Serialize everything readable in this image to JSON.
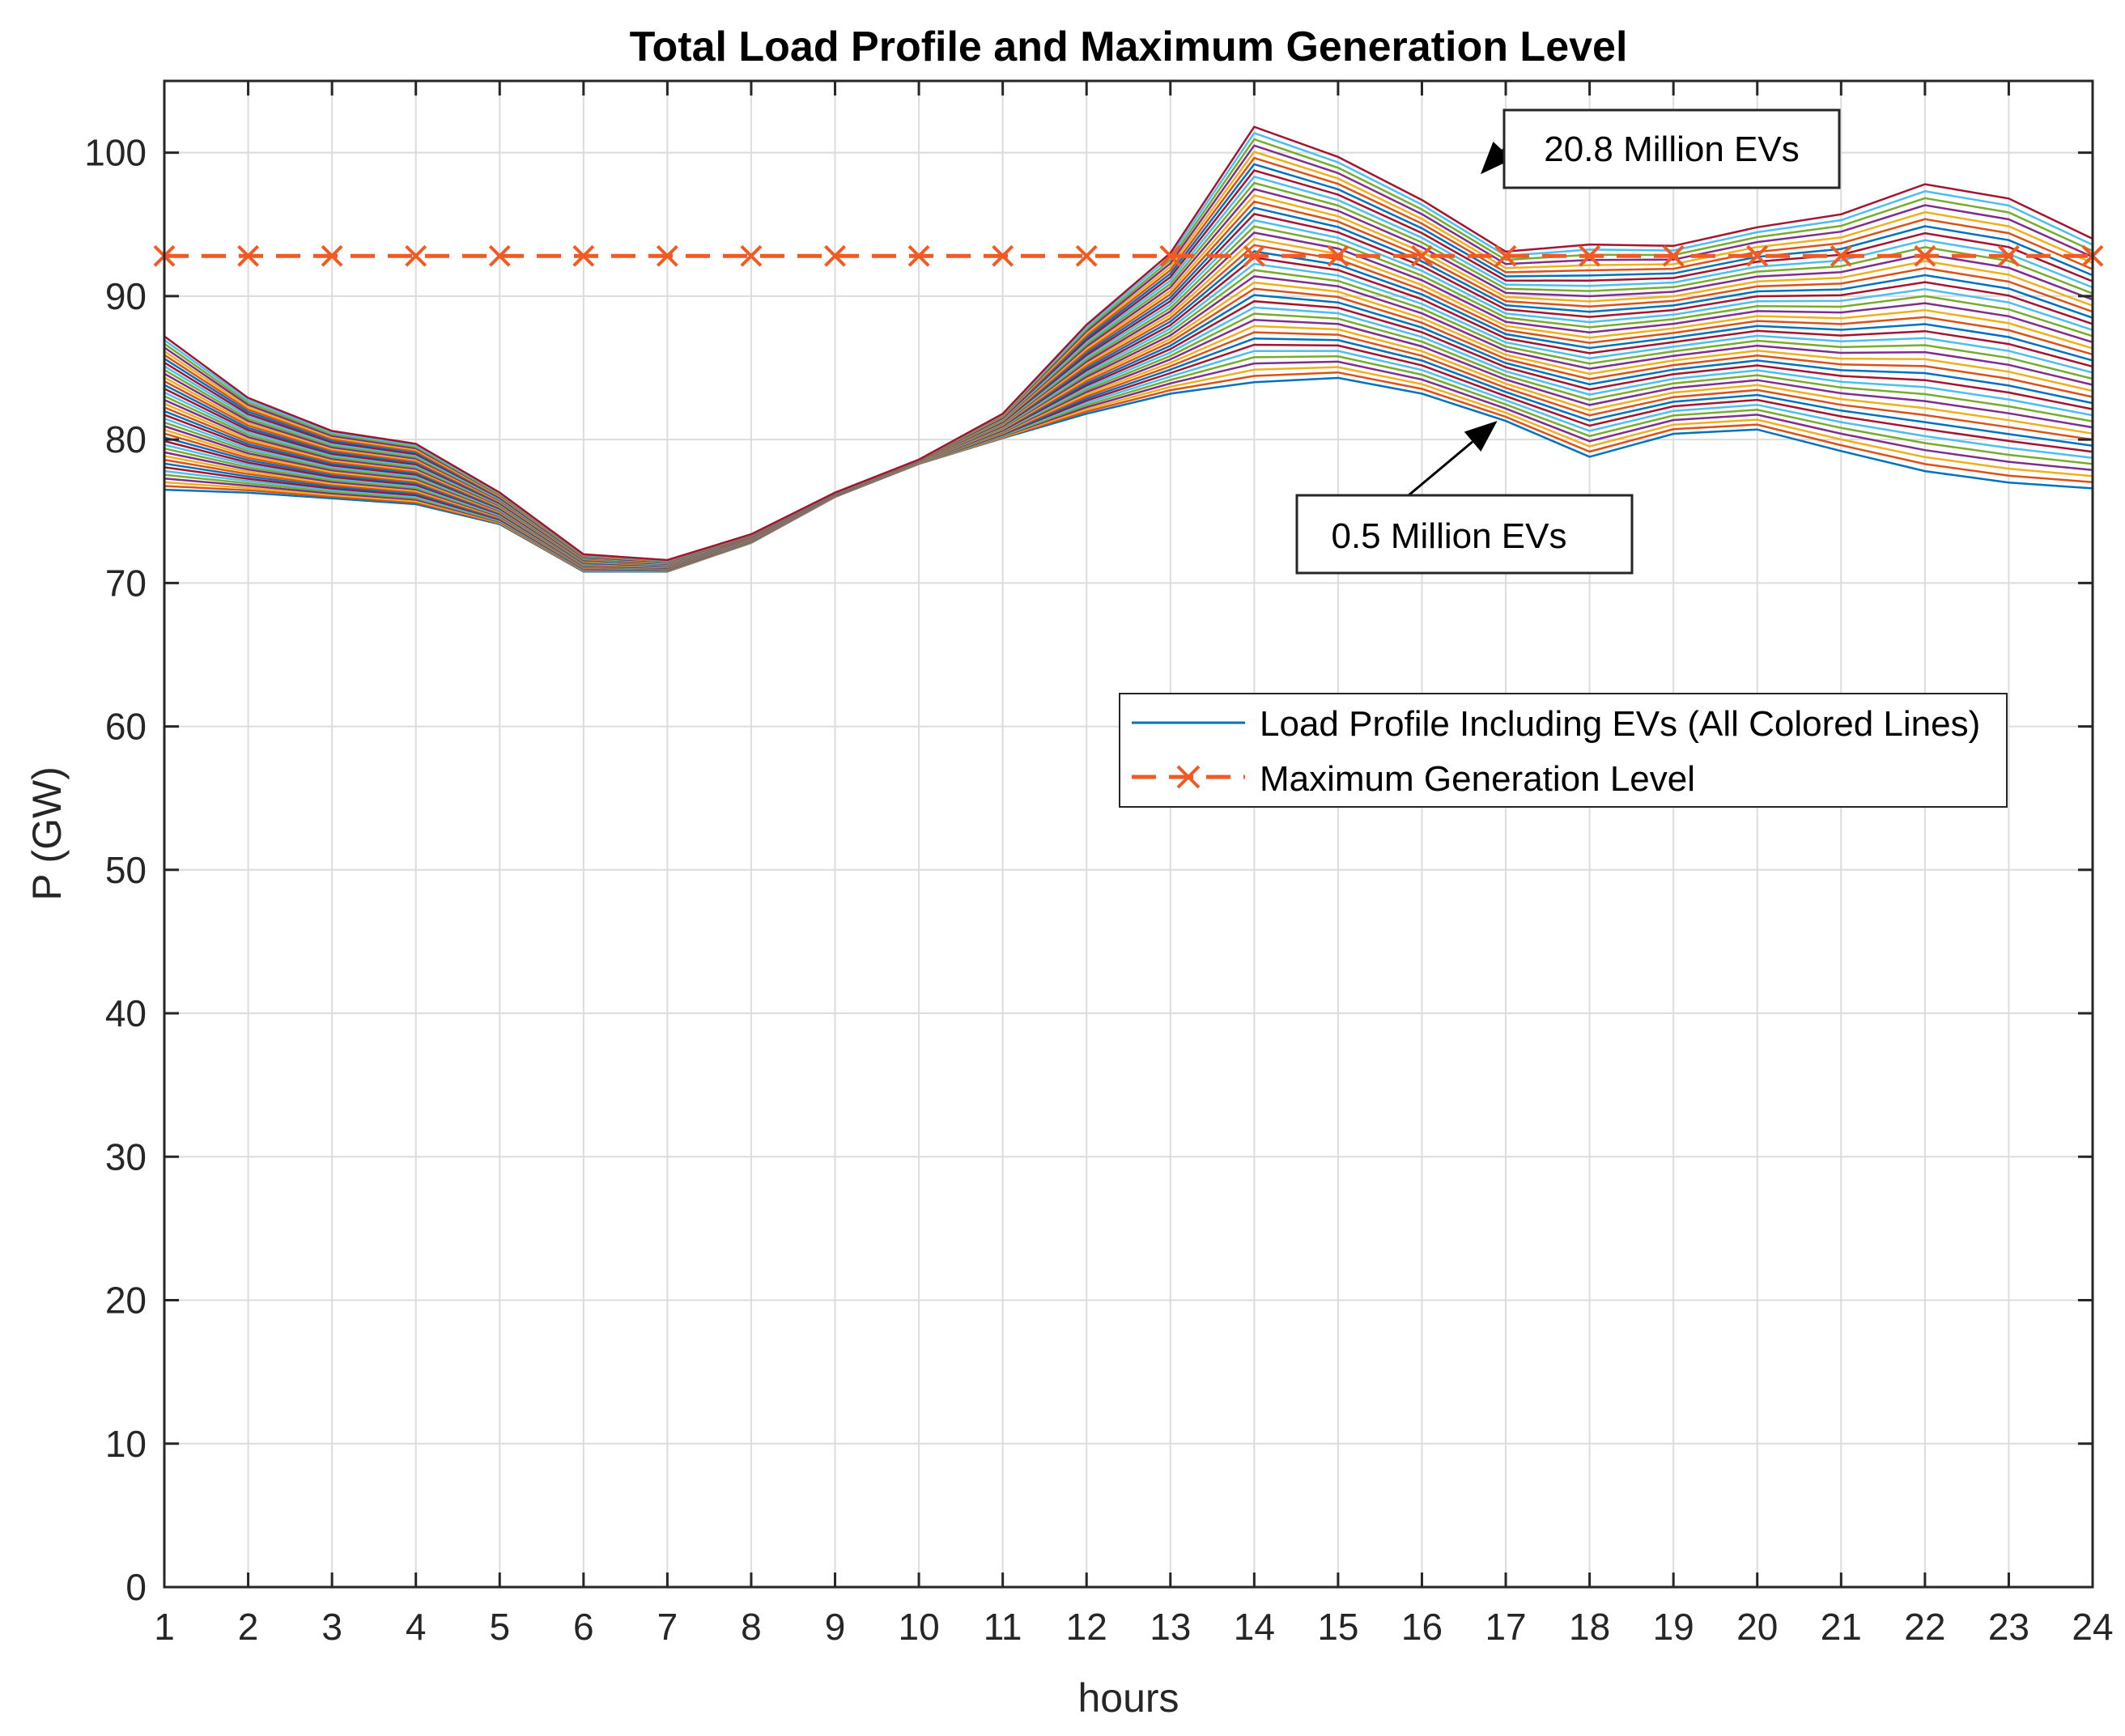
{
  "chart_data": {
    "type": "line",
    "title": "Total Load Profile and Maximum Generation Level",
    "xlabel": "hours",
    "ylabel": "P (GW)",
    "xlim": [
      1,
      24
    ],
    "ylim": [
      0,
      105
    ],
    "x_ticks": [
      1,
      2,
      3,
      4,
      5,
      6,
      7,
      8,
      9,
      10,
      11,
      12,
      13,
      14,
      15,
      16,
      17,
      18,
      19,
      20,
      21,
      22,
      23,
      24
    ],
    "y_ticks": [
      0,
      10,
      20,
      30,
      40,
      50,
      60,
      70,
      80,
      90,
      100
    ],
    "grid": true,
    "legend_position": "center-right",
    "x": [
      1,
      2,
      3,
      4,
      5,
      6,
      7,
      8,
      9,
      10,
      11,
      12,
      13,
      14,
      15,
      16,
      17,
      18,
      19,
      20,
      21,
      22,
      23,
      24
    ],
    "line_count": 42,
    "line_colors": [
      "#0072BD",
      "#D95319",
      "#EDB120",
      "#7E2F8E",
      "#77AC30",
      "#4DBEEE",
      "#A2142F"
    ],
    "series": [
      {
        "name": "0.5 Million EVs",
        "values": [
          76.5,
          76.3,
          75.9,
          75.5,
          74.1,
          70.8,
          70.8,
          72.8,
          76.0,
          78.3,
          80.1,
          81.8,
          83.2,
          84.0,
          84.3,
          83.2,
          81.3,
          78.8,
          80.4,
          80.7,
          79.2,
          77.8,
          77.0,
          76.6
        ]
      },
      {
        "name": "20.8 Million EVs",
        "values": [
          87.2,
          82.9,
          80.6,
          79.7,
          76.3,
          72.0,
          71.6,
          73.4,
          76.3,
          78.6,
          81.8,
          88.0,
          93.0,
          101.8,
          99.7,
          96.7,
          93.1,
          93.6,
          93.5,
          94.8,
          95.7,
          97.8,
          96.8,
          94.0
        ]
      },
      {
        "name": "Maximum Generation Level",
        "values": [
          92.8,
          92.8,
          92.8,
          92.8,
          92.8,
          92.8,
          92.8,
          92.8,
          92.8,
          92.8,
          92.8,
          92.8,
          92.8,
          92.8,
          92.8,
          92.8,
          92.8,
          92.8,
          92.8,
          92.8,
          92.8,
          92.8,
          92.8,
          92.8
        ],
        "color": "#F15A22",
        "style": "dashed",
        "marker": "x"
      }
    ],
    "legend": [
      "Load Profile Including EVs (All Colored Lines)",
      "Maximum Generation Level"
    ],
    "annotations": [
      {
        "text": "20.8 Million EVs",
        "points_to_x": 16.7,
        "points_to_y": 98.5
      },
      {
        "text": "0.5 Million EVs",
        "points_to_x": 16.9,
        "points_to_y": 81.3
      }
    ]
  }
}
